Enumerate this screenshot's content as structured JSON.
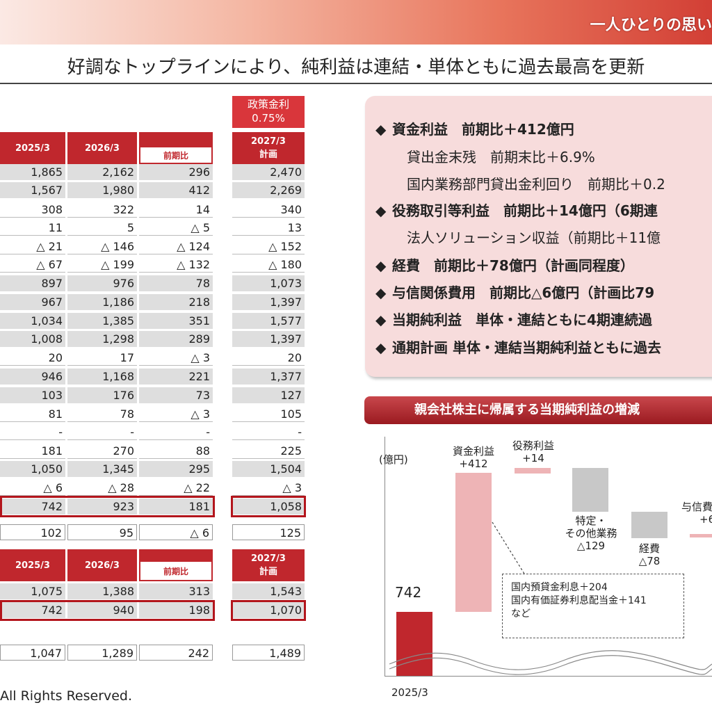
{
  "header": {
    "slogan": "一人ひとりの思い",
    "title": "好調なトップラインにより、純利益は連結・単体ともに過去最高を更新"
  },
  "policy_rate": {
    "label": "政策金利",
    "value": "0.75%"
  },
  "table1": {
    "headers": {
      "fy2025": "2025/3",
      "fy2026": "2026/3",
      "yoy": "前期比",
      "plan_year": "2027/3",
      "plan": "計画"
    },
    "rows": [
      {
        "a": "1,865",
        "b": "2,162",
        "c": "296",
        "d": "2,470"
      },
      {
        "a": "1,567",
        "b": "1,980",
        "c": "412",
        "d": "2,269"
      },
      {
        "a": "308",
        "b": "322",
        "c": "14",
        "d": "340"
      },
      {
        "a": "11",
        "b": "5",
        "c": "△ 5",
        "d": "13"
      },
      {
        "a": "△ 21",
        "b": "△ 146",
        "c": "△ 124",
        "d": "△ 152"
      },
      {
        "a": "△ 67",
        "b": "△ 199",
        "c": "△ 132",
        "d": "△ 180"
      },
      {
        "a": "897",
        "b": "976",
        "c": "78",
        "d": "1,073"
      },
      {
        "a": "967",
        "b": "1,186",
        "c": "218",
        "d": "1,397"
      },
      {
        "a": "1,034",
        "b": "1,385",
        "c": "351",
        "d": "1,577"
      },
      {
        "a": "1,008",
        "b": "1,298",
        "c": "289",
        "d": "1,397"
      },
      {
        "a": "20",
        "b": "17",
        "c": "△ 3",
        "d": "20"
      },
      {
        "a": "946",
        "b": "1,168",
        "c": "221",
        "d": "1,377"
      },
      {
        "a": "103",
        "b": "176",
        "c": "73",
        "d": "127"
      },
      {
        "a": "81",
        "b": "78",
        "c": "△ 3",
        "d": "105"
      },
      {
        "a": "-",
        "b": "-",
        "c": "-",
        "d": "-"
      },
      {
        "a": "181",
        "b": "270",
        "c": "88",
        "d": "225"
      },
      {
        "a": "1,050",
        "b": "1,345",
        "c": "295",
        "d": "1,504"
      },
      {
        "a": "△ 6",
        "b": "△ 28",
        "c": "△ 22",
        "d": "△ 3"
      },
      {
        "a": "742",
        "b": "923",
        "c": "181",
        "d": "1,058"
      },
      {
        "a": "102",
        "b": "95",
        "c": "△ 6",
        "d": "125"
      }
    ]
  },
  "table2": {
    "headers": {
      "fy2025": "2025/3",
      "fy2026": "2026/3",
      "yoy": "前期比",
      "plan_year": "2027/3",
      "plan": "計画"
    },
    "rows": [
      {
        "a": "1,075",
        "b": "1,388",
        "c": "313",
        "d": "1,543"
      },
      {
        "a": "742",
        "b": "940",
        "c": "198",
        "d": "1,070"
      },
      {
        "a": "1,047",
        "b": "1,289",
        "c": "242",
        "d": "1,489"
      }
    ]
  },
  "summary": {
    "diamond": "◆",
    "b1": "資金利益　前期比＋412億円",
    "b1s1": "貸出金末残　前期末比＋6.9%",
    "b1s2": "国内業務部門貸出金利回り　前期比＋0.2",
    "b2": "役務取引等利益　前期比＋14億円（6期連",
    "b2s1": "法人ソリューション収益（前期比＋11億",
    "b3": "経費　前期比＋78億円（計画同程度）",
    "b4": "与信関係費用　前期比△6億円（計画比79",
    "b5": "当期純利益　単体・連結ともに4期連続過",
    "b6": "通期計画 単体・連結当期純利益ともに過去"
  },
  "waterfall": {
    "banner": "親会社株主に帰属する当期純利益の増減",
    "unit": "(億円)",
    "start_value": "742",
    "start_label": "2025/3",
    "fund_label": "資金利益",
    "fund_value": "+412",
    "fee_label": "役務利益",
    "fee_value": "+14",
    "other_label1": "特定・",
    "other_label2": "その他業務",
    "other_value": "△129",
    "exp_label": "経費",
    "exp_value": "△78",
    "credit_label": "与信費",
    "credit_value": "+6",
    "note1": "国内預貸金利息＋204",
    "note2": "国内有価証券利息配当金＋141",
    "note3": "など",
    "colors": {
      "start": "#c0272d",
      "increase": "#eeb4b6",
      "decrease": "#c8c8c8"
    }
  },
  "footer": {
    "copyright": "All Rights Reserved."
  }
}
